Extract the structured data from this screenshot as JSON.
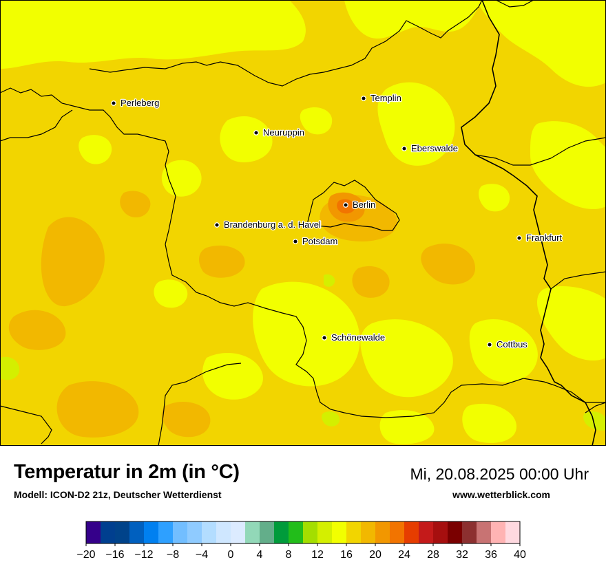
{
  "title": "Temperatur in 2m (in °C)",
  "subtitle": "Modell: ICON-D2 21z, Deutscher Wetterdienst",
  "datetime": "Mi, 20.08.2025 00:00 Uhr",
  "website": "www.wetterblick.com",
  "cities": [
    {
      "name": "Perleberg"
    },
    {
      "name": "Templin"
    },
    {
      "name": "Neuruppin"
    },
    {
      "name": "Eberswalde"
    },
    {
      "name": "Berlin"
    },
    {
      "name": "Brandenburg a. d. Havel"
    },
    {
      "name": "Potsdam"
    },
    {
      "name": "Frankfurt"
    },
    {
      "name": "Schönewalde"
    },
    {
      "name": "Cottbus"
    }
  ],
  "colorscale": {
    "ticks": [
      "−20",
      "−16",
      "−12",
      "−8",
      "−4",
      "0",
      "4",
      "8",
      "12",
      "16",
      "20",
      "24",
      "28",
      "32",
      "36",
      "40"
    ],
    "colors": [
      "#35008a",
      "#003f8f",
      "#00438a",
      "#0060bf",
      "#0080f0",
      "#2ea0ff",
      "#72beff",
      "#8fcbff",
      "#b3ddff",
      "#cfe7ff",
      "#dcebff",
      "#92d8b8",
      "#63ae8a",
      "#009b3b",
      "#22bd1a",
      "#a4de00",
      "#d4ef00",
      "#f2ff00",
      "#f2d500",
      "#f2b800",
      "#f29700",
      "#f27400",
      "#e63d00",
      "#c41a1a",
      "#a60f0f",
      "#7a0000",
      "#8c3030",
      "#c87373",
      "#ffb3b3",
      "#ffd9e0"
    ]
  }
}
